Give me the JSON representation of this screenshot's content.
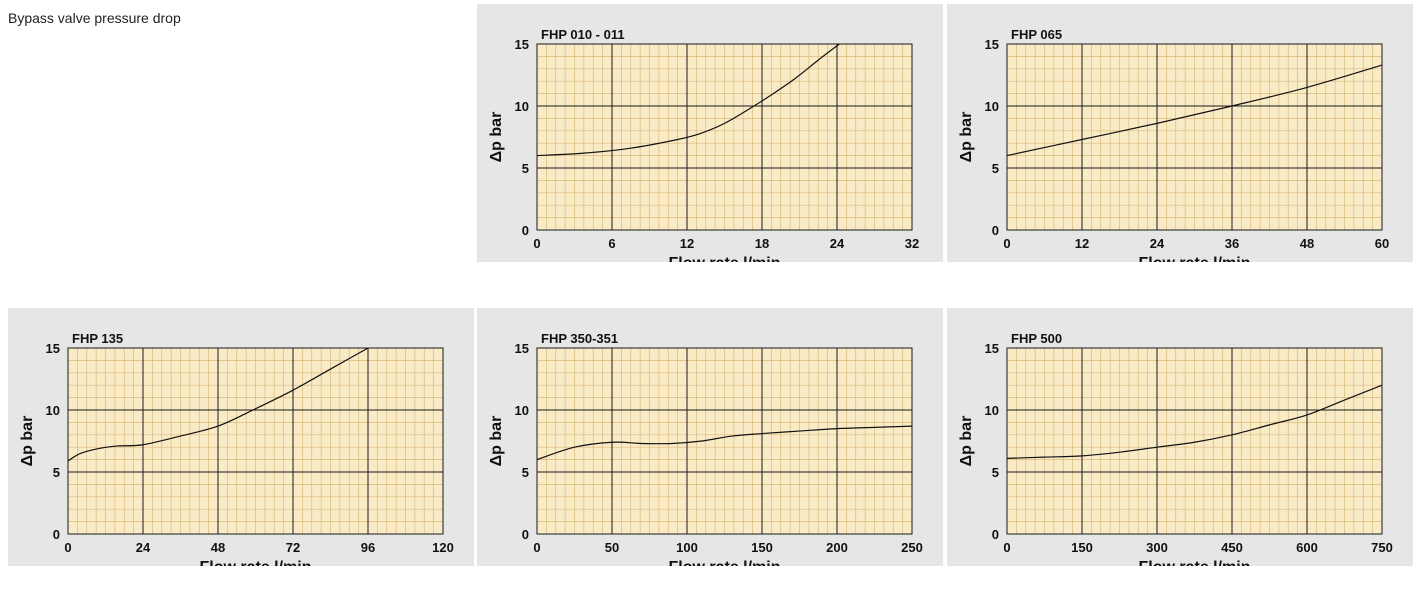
{
  "page_title": "Bypass valve pressure drop",
  "colors": {
    "panel_bg": "#e6e6e6",
    "plot_bg": "#faebc7",
    "minor_grid": "#d9b97c",
    "major_grid": "#1a1a1a",
    "curve": "#111111"
  },
  "chart_data": [
    {
      "type": "line",
      "title": "FHP 010 - 011",
      "xlabel": "Flow rate l/min",
      "ylabel": "Δp bar",
      "xlim": [
        0,
        32
      ],
      "ylim": [
        0,
        15
      ],
      "xticks": [
        0,
        6,
        12,
        18,
        24,
        32
      ],
      "yticks": [
        0,
        5,
        10,
        15
      ],
      "series": [
        {
          "x": [
            0,
            4,
            8,
            12,
            14,
            16,
            18,
            20,
            22,
            24,
            25.8
          ],
          "y": [
            6.0,
            6.2,
            6.6,
            7.3,
            7.8,
            8.6,
            9.7,
            10.9,
            12.2,
            13.7,
            15.0
          ]
        }
      ]
    },
    {
      "type": "line",
      "title": "FHP 065",
      "xlabel": "Flow rate l/min",
      "ylabel": "Δp bar",
      "xlim": [
        0,
        60
      ],
      "ylim": [
        0,
        15
      ],
      "xticks": [
        0,
        12,
        24,
        36,
        48,
        60
      ],
      "yticks": [
        0,
        5,
        10,
        15
      ],
      "series": [
        {
          "x": [
            0,
            12,
            24,
            36,
            48,
            60
          ],
          "y": [
            6.0,
            7.3,
            8.6,
            10.0,
            11.5,
            13.3
          ]
        }
      ]
    },
    {
      "type": "line",
      "title": "FHP 135",
      "xlabel": "Flow rate l/min",
      "ylabel": "Δp bar",
      "xlim": [
        0,
        120
      ],
      "ylim": [
        0,
        15
      ],
      "xticks": [
        0,
        24,
        48,
        72,
        96,
        120
      ],
      "yticks": [
        0,
        5,
        10,
        15
      ],
      "series": [
        {
          "x": [
            0,
            4,
            10,
            16,
            24,
            36,
            48,
            60,
            72,
            84,
            96
          ],
          "y": [
            5.9,
            6.5,
            6.9,
            7.1,
            7.2,
            7.9,
            8.7,
            10.1,
            11.6,
            13.3,
            15.0
          ]
        }
      ]
    },
    {
      "type": "line",
      "title": "FHP 350-351",
      "xlabel": "Flow rate l/min",
      "ylabel": "Δp bar",
      "xlim": [
        0,
        250
      ],
      "ylim": [
        0,
        15
      ],
      "xticks": [
        0,
        50,
        100,
        150,
        200,
        250
      ],
      "yticks": [
        0,
        5,
        10,
        15
      ],
      "series": [
        {
          "x": [
            0,
            25,
            50,
            70,
            90,
            110,
            130,
            150,
            175,
            200,
            225,
            250
          ],
          "y": [
            6.0,
            7.0,
            7.4,
            7.3,
            7.3,
            7.5,
            7.9,
            8.1,
            8.3,
            8.5,
            8.6,
            8.7
          ]
        }
      ]
    },
    {
      "type": "line",
      "title": "FHP 500",
      "xlabel": "Flow rate l/min",
      "ylabel": "Δp bar",
      "xlim": [
        0,
        750
      ],
      "ylim": [
        0,
        15
      ],
      "xticks": [
        0,
        150,
        300,
        450,
        600,
        750
      ],
      "yticks": [
        0,
        5,
        10,
        15
      ],
      "series": [
        {
          "x": [
            0,
            75,
            150,
            225,
            300,
            375,
            450,
            525,
            600,
            675,
            750
          ],
          "y": [
            6.1,
            6.2,
            6.3,
            6.6,
            7.0,
            7.4,
            8.0,
            8.8,
            9.6,
            10.8,
            12.0
          ]
        }
      ]
    }
  ]
}
